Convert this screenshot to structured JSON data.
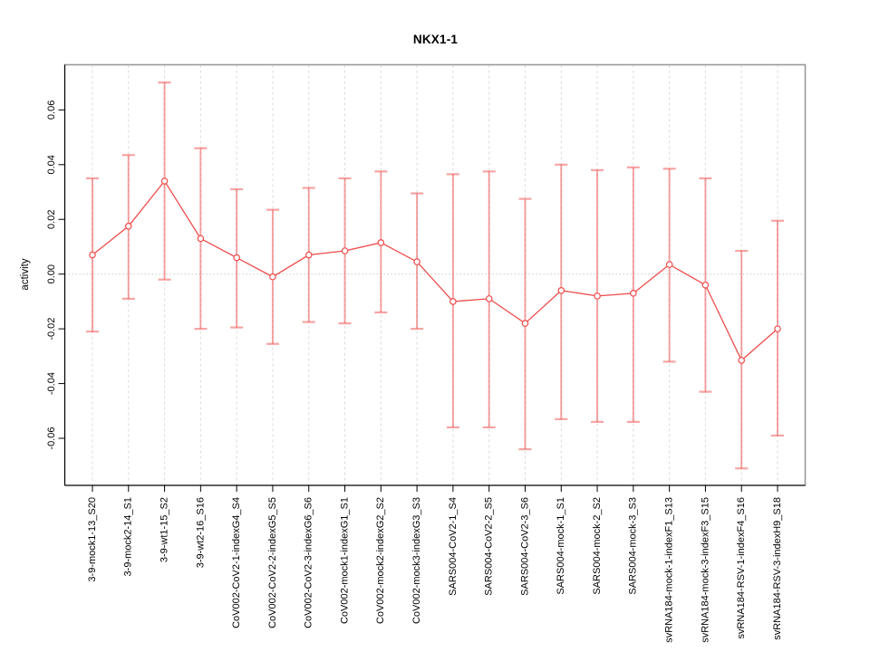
{
  "title": "NKX1-1",
  "chart_data": {
    "type": "line",
    "error_bars": true,
    "title": "NKX1-1",
    "xlabel": "",
    "ylabel": "activity",
    "legend": "none",
    "grid": "vertical dashed gridlines at each category; dotted horizontal line at y=0",
    "ylim": [
      -0.0772,
      0.0765
    ],
    "yticks": [
      0.06,
      0.04,
      0.02,
      0.0,
      -0.02,
      -0.04,
      -0.06
    ],
    "categories": [
      "3-9-mock1-13_S20",
      "3-9-mock2-14_S1",
      "3-9-wt1-15_S2",
      "3-9-wt2-16_S16",
      "CoV002-CoV2-1-indexG4_S4",
      "CoV002-CoV2-2-indexG5_S5",
      "CoV002-CoV2-3-indexG6_S6",
      "CoV002-mock1-indexG1_S1",
      "CoV002-mock2-indexG2_S2",
      "CoV002-mock3-indexG3_S3",
      "SARS004-CoV2-1_S4",
      "SARS004-CoV2-2_S5",
      "SARS004-CoV2-3_S6",
      "SARS004-mock-1_S1",
      "SARS004-mock-2_S2",
      "SARS004-mock-3_S3",
      "svRNA184-mock-1-indexF1_S13",
      "svRNA184-mock-3-indexF3_S15",
      "svRNA184-RSV-1-indexF4_S16",
      "svRNA184-RSV-3-indexH9_S18"
    ],
    "series": [
      {
        "name": "activity",
        "values": [
          0.007,
          0.0175,
          0.034,
          0.013,
          0.006,
          -0.001,
          0.007,
          0.0085,
          0.0115,
          0.0045,
          -0.01,
          -0.009,
          -0.018,
          -0.006,
          -0.008,
          -0.007,
          0.0035,
          -0.004,
          -0.0315,
          -0.02
        ],
        "upper": [
          0.035,
          0.0435,
          0.07,
          0.046,
          0.031,
          0.0235,
          0.0315,
          0.035,
          0.0375,
          0.0295,
          0.0365,
          0.0375,
          0.0275,
          0.04,
          0.038,
          0.039,
          0.0385,
          0.035,
          0.0085,
          0.0195
        ],
        "lower": [
          -0.021,
          -0.009,
          -0.002,
          -0.02,
          -0.0195,
          -0.0255,
          -0.0175,
          -0.018,
          -0.014,
          -0.02,
          -0.056,
          -0.056,
          -0.064,
          -0.053,
          -0.054,
          -0.054,
          -0.032,
          -0.043,
          -0.071,
          -0.059
        ]
      }
    ],
    "colors": {
      "point_line": "#ef4b4b",
      "error_bar": "rgba(240,90,90,0.55)",
      "gridline": "#dcdcdc",
      "zero_line": "#c8c8c8",
      "box": "#9a9a9a",
      "axis": "#000000",
      "text": "#000000"
    }
  }
}
